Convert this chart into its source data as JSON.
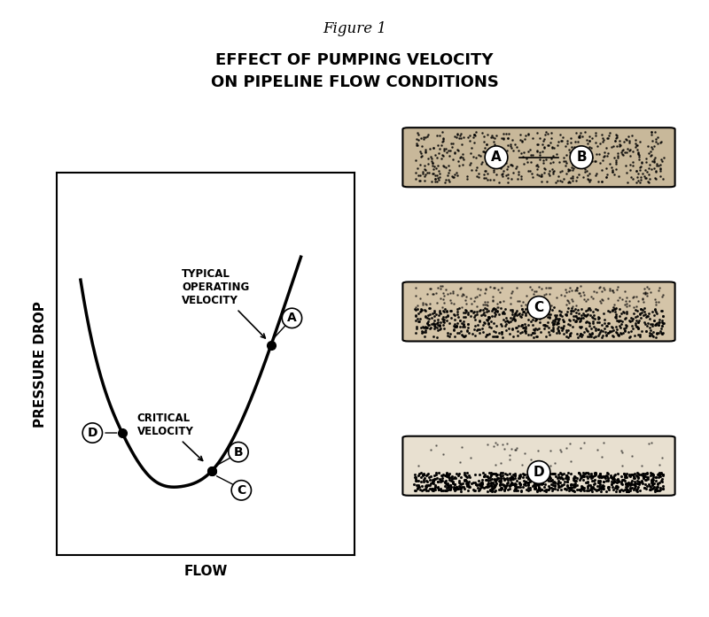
{
  "figure_title": "Figure 1",
  "main_title_line1": "EFFECT OF PUMPING VELOCITY",
  "main_title_line2": "ON PIPELINE FLOW CONDITIONS",
  "xlabel": "FLOW",
  "ylabel": "PRESSURE DROP",
  "curve_points": {
    "x": [
      0.08,
      0.13,
      0.22,
      0.32,
      0.42,
      0.52,
      0.62,
      0.72,
      0.82
    ],
    "y": [
      0.72,
      0.52,
      0.32,
      0.2,
      0.18,
      0.22,
      0.35,
      0.55,
      0.78
    ]
  },
  "point_A": [
    0.72,
    0.55
  ],
  "point_B": [
    0.52,
    0.35
  ],
  "point_C": [
    0.52,
    0.22
  ],
  "point_D": [
    0.22,
    0.2
  ],
  "label_A": "A",
  "label_B": "B",
  "label_C": "C",
  "label_D": "D",
  "annotation_typical": "TYPICAL\nOPERATING\nVELOCITY",
  "annotation_critical": "CRITICAL\nVELOCITY",
  "bg_color": "#ffffff",
  "line_color": "#000000",
  "dot_color": "#000000",
  "pipe_fill_AB": "#c8b89a",
  "pipe_fill_C": "#8a7a68",
  "pipe_fill_D_top": "#d4c4a8",
  "pipe_fill_D_bot": "#8a7a68"
}
